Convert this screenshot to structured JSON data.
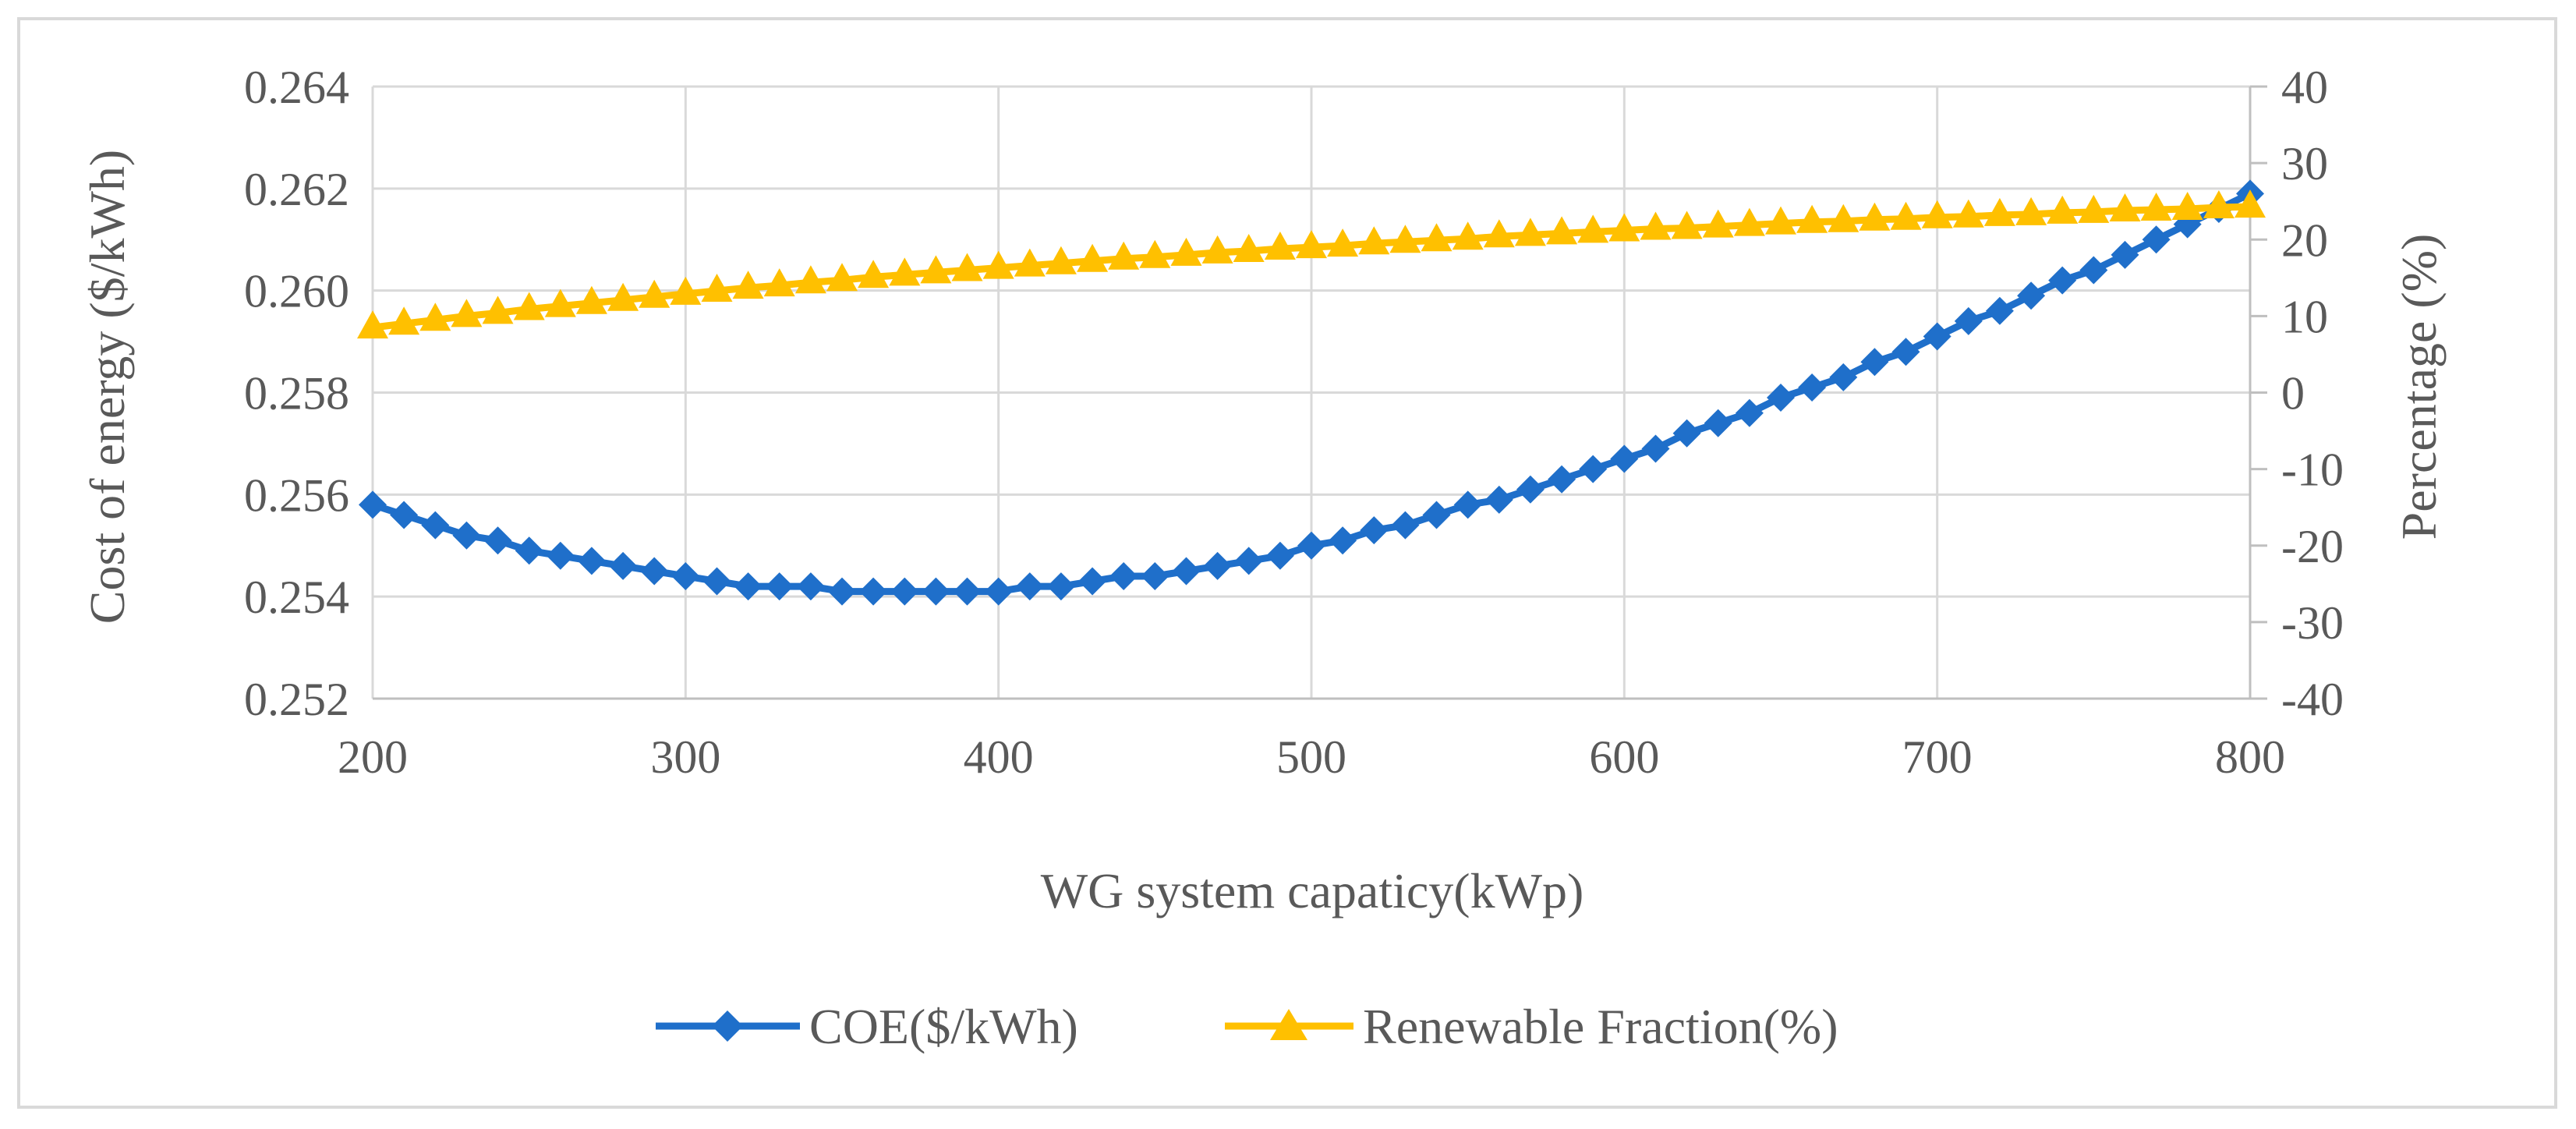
{
  "chart_data": {
    "type": "line",
    "title": "",
    "xlabel": "WG system capaticy(kWp)",
    "ylabel": "Cost of energy ($/kWh)",
    "y2label": "Percentage (%)",
    "xlim": [
      200,
      800
    ],
    "ylim": [
      0.252,
      0.264
    ],
    "y2lim": [
      -40,
      40
    ],
    "x_ticks": [
      "200",
      "300",
      "400",
      "500",
      "600",
      "700",
      "800"
    ],
    "y_ticks": [
      "0.252",
      "0.254",
      "0.256",
      "0.258",
      "0.260",
      "0.262",
      "0.264"
    ],
    "y2_ticks": [
      "-40",
      "-30",
      "-20",
      "-10",
      "0",
      "10",
      "20",
      "30",
      "40"
    ],
    "grid": true,
    "legend_position": "bottom",
    "x": [
      200,
      210,
      220,
      230,
      240,
      250,
      260,
      270,
      280,
      290,
      300,
      310,
      320,
      330,
      340,
      350,
      360,
      370,
      380,
      390,
      400,
      410,
      420,
      430,
      440,
      450,
      460,
      470,
      480,
      490,
      500,
      510,
      520,
      530,
      540,
      550,
      560,
      570,
      580,
      590,
      600,
      610,
      620,
      630,
      640,
      650,
      660,
      670,
      680,
      690,
      700,
      710,
      720,
      730,
      740,
      750,
      760,
      770,
      780,
      790,
      800
    ],
    "series": [
      {
        "name": "COE($/kWh)",
        "axis": "left",
        "marker": "diamond",
        "color": "#1f6fca",
        "values": [
          0.2558,
          0.2556,
          0.2554,
          0.2552,
          0.2551,
          0.2549,
          0.2548,
          0.2547,
          0.2546,
          0.2545,
          0.2544,
          0.2543,
          0.2542,
          0.2542,
          0.2542,
          0.2541,
          0.2541,
          0.2541,
          0.2541,
          0.2541,
          0.2541,
          0.2542,
          0.2542,
          0.2543,
          0.2544,
          0.2544,
          0.2545,
          0.2546,
          0.2547,
          0.2548,
          0.255,
          0.2551,
          0.2553,
          0.2554,
          0.2556,
          0.2558,
          0.2559,
          0.2561,
          0.2563,
          0.2565,
          0.2567,
          0.2569,
          0.2572,
          0.2574,
          0.2576,
          0.2579,
          0.2581,
          0.2583,
          0.2586,
          0.2588,
          0.2591,
          0.2594,
          0.2596,
          0.2599,
          0.2602,
          0.2604,
          0.2607,
          0.261,
          0.2613,
          0.2616,
          0.2619
        ]
      },
      {
        "name": "Renewable Fraction(%)",
        "axis": "right",
        "marker": "triangle",
        "color": "#ffc000",
        "values": [
          8.5,
          9.0,
          9.5,
          10.0,
          10.4,
          10.9,
          11.3,
          11.7,
          12.1,
          12.5,
          12.9,
          13.3,
          13.7,
          14.0,
          14.4,
          14.7,
          15.1,
          15.4,
          15.7,
          16.0,
          16.3,
          16.6,
          16.9,
          17.2,
          17.5,
          17.7,
          18.0,
          18.3,
          18.5,
          18.8,
          19.0,
          19.2,
          19.5,
          19.7,
          19.9,
          20.1,
          20.4,
          20.6,
          20.8,
          21.0,
          21.2,
          21.4,
          21.5,
          21.7,
          21.9,
          22.1,
          22.3,
          22.4,
          22.6,
          22.7,
          22.9,
          23.0,
          23.2,
          23.3,
          23.5,
          23.6,
          23.8,
          23.9,
          24.0,
          24.2,
          24.3
        ]
      }
    ]
  }
}
